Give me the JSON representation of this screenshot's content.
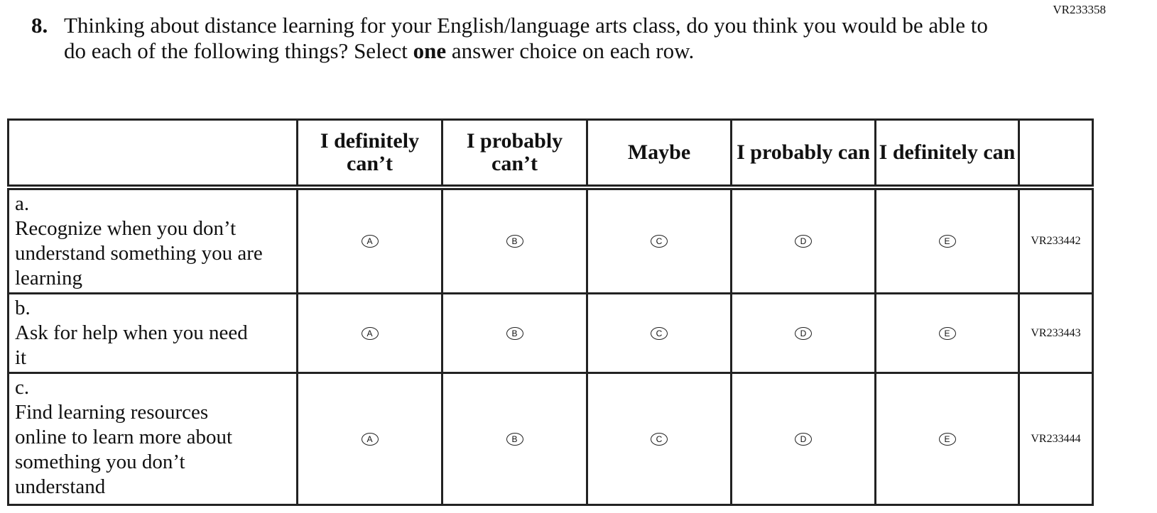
{
  "page_code": "VR233358",
  "question": {
    "number": "8.",
    "text_before": "Thinking about distance learning for your English/language arts class, do you think you would be able to do each of the following things? Select ",
    "text_bold": "one",
    "text_after": " answer choice on each row."
  },
  "columns": [
    "I definitely can’t",
    "I probably can’t",
    "Maybe",
    "I probably can",
    "I definitely can"
  ],
  "options": [
    "A",
    "B",
    "C",
    "D",
    "E"
  ],
  "rows": [
    {
      "label": "a.",
      "text": "Recognize when you don’t understand something you are learning",
      "code": "VR233442"
    },
    {
      "label": "b.",
      "text": "Ask for help when you need it",
      "code": "VR233443"
    },
    {
      "label": "c.",
      "text": "Find learning resources online to learn more about something you don’t understand",
      "code": "VR233444"
    }
  ]
}
